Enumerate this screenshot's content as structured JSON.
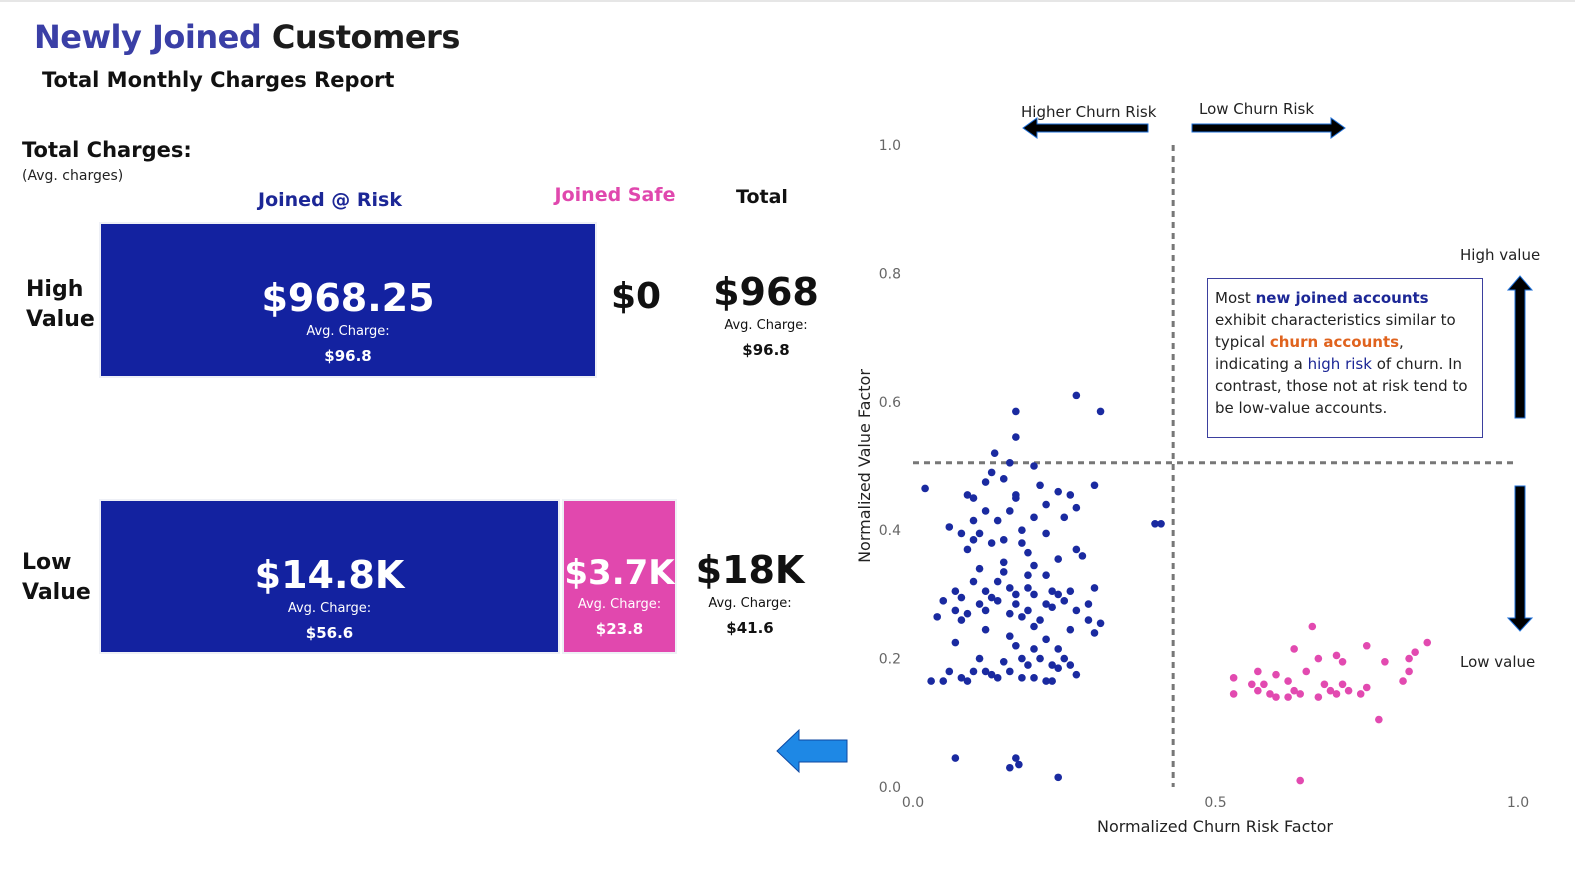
{
  "header": {
    "title_part1": "Newly Joined",
    "title_part2": "Customers",
    "subtitle": "Total Monthly Charges Report"
  },
  "summary": {
    "title": "Total Charges:",
    "subtitle": "(Avg. charges)",
    "columns": {
      "risk": "Joined @ Risk",
      "safe": "Joined Safe",
      "total": "Total"
    },
    "rows": {
      "high": {
        "label_line1": "High",
        "label_line2": "Value",
        "risk": {
          "value": "$968.25",
          "avg_label": "Avg. Charge:",
          "avg": "$96.8"
        },
        "safe": {
          "value": "$0"
        },
        "total": {
          "value": "$968",
          "avg_label": "Avg. Charge:",
          "avg": "$96.8"
        }
      },
      "low": {
        "label_line1": "Low",
        "label_line2": "Value",
        "risk": {
          "value": "$14.8K",
          "avg_label": "Avg. Charge:",
          "avg": "$56.6"
        },
        "safe": {
          "value": "$3.7K",
          "avg_label": "Avg. Charge:",
          "avg": "$23.8"
        },
        "total": {
          "value": "$18K",
          "avg_label": "Avg. Charge:",
          "avg": "$41.6"
        }
      }
    }
  },
  "colors": {
    "risk": "#1322a0",
    "safe": "#e148ae",
    "title_accent": "#3a3fa6",
    "churn_highlight": "#e0631e",
    "back_arrow": "#1e88e5"
  },
  "annotations": {
    "higher_churn": "Higher Churn Risk",
    "low_churn": "Low Churn Risk",
    "high_value": "High value",
    "low_value": "Low value",
    "note": {
      "p1": "Most ",
      "p2": "new joined accounts",
      "p3": " exhibit characteristics similar to typical ",
      "p4": "churn accounts",
      "p5": ", indicating a ",
      "p6": "high risk",
      "p7": " of churn. In contrast, those not at risk tend to be low-value accounts."
    }
  },
  "chart_data": {
    "type": "scatter",
    "xlabel": "Normalized Churn Risk Factor",
    "ylabel": "Normalized Value Factor",
    "xlim": [
      0,
      1
    ],
    "ylim": [
      0,
      1
    ],
    "xticks": [
      "0.0",
      "0.5",
      "1.0"
    ],
    "yticks": [
      "0.0",
      "0.2",
      "0.4",
      "0.6",
      "0.8",
      "1.0"
    ],
    "reference_lines": {
      "x": 0.43,
      "y": 0.505
    },
    "series": [
      {
        "color": "#1a2aa0",
        "points": [
          [
            0.17,
            0.585
          ],
          [
            0.27,
            0.61
          ],
          [
            0.31,
            0.585
          ],
          [
            0.17,
            0.545
          ],
          [
            0.135,
            0.52
          ],
          [
            0.16,
            0.505
          ],
          [
            0.2,
            0.5
          ],
          [
            0.13,
            0.49
          ],
          [
            0.12,
            0.475
          ],
          [
            0.15,
            0.48
          ],
          [
            0.02,
            0.465
          ],
          [
            0.09,
            0.455
          ],
          [
            0.17,
            0.455
          ],
          [
            0.24,
            0.46
          ],
          [
            0.26,
            0.455
          ],
          [
            0.3,
            0.47
          ],
          [
            0.21,
            0.47
          ],
          [
            0.1,
            0.45
          ],
          [
            0.17,
            0.45
          ],
          [
            0.22,
            0.44
          ],
          [
            0.27,
            0.435
          ],
          [
            0.12,
            0.43
          ],
          [
            0.16,
            0.43
          ],
          [
            0.2,
            0.42
          ],
          [
            0.25,
            0.42
          ],
          [
            0.1,
            0.415
          ],
          [
            0.14,
            0.415
          ],
          [
            0.06,
            0.405
          ],
          [
            0.08,
            0.395
          ],
          [
            0.11,
            0.395
          ],
          [
            0.18,
            0.4
          ],
          [
            0.22,
            0.395
          ],
          [
            0.4,
            0.41
          ],
          [
            0.41,
            0.41
          ],
          [
            0.1,
            0.385
          ],
          [
            0.13,
            0.38
          ],
          [
            0.15,
            0.385
          ],
          [
            0.18,
            0.38
          ],
          [
            0.09,
            0.37
          ],
          [
            0.19,
            0.365
          ],
          [
            0.27,
            0.37
          ],
          [
            0.24,
            0.355
          ],
          [
            0.28,
            0.36
          ],
          [
            0.15,
            0.35
          ],
          [
            0.2,
            0.345
          ],
          [
            0.11,
            0.34
          ],
          [
            0.15,
            0.335
          ],
          [
            0.19,
            0.33
          ],
          [
            0.22,
            0.33
          ],
          [
            0.1,
            0.32
          ],
          [
            0.14,
            0.32
          ],
          [
            0.07,
            0.305
          ],
          [
            0.12,
            0.305
          ],
          [
            0.16,
            0.31
          ],
          [
            0.19,
            0.31
          ],
          [
            0.23,
            0.305
          ],
          [
            0.08,
            0.295
          ],
          [
            0.05,
            0.29
          ],
          [
            0.13,
            0.295
          ],
          [
            0.17,
            0.3
          ],
          [
            0.2,
            0.3
          ],
          [
            0.24,
            0.3
          ],
          [
            0.26,
            0.305
          ],
          [
            0.3,
            0.31
          ],
          [
            0.11,
            0.285
          ],
          [
            0.14,
            0.29
          ],
          [
            0.17,
            0.285
          ],
          [
            0.22,
            0.285
          ],
          [
            0.25,
            0.29
          ],
          [
            0.29,
            0.285
          ],
          [
            0.07,
            0.275
          ],
          [
            0.09,
            0.27
          ],
          [
            0.12,
            0.275
          ],
          [
            0.16,
            0.27
          ],
          [
            0.19,
            0.275
          ],
          [
            0.23,
            0.28
          ],
          [
            0.27,
            0.275
          ],
          [
            0.04,
            0.265
          ],
          [
            0.08,
            0.26
          ],
          [
            0.18,
            0.265
          ],
          [
            0.21,
            0.26
          ],
          [
            0.29,
            0.26
          ],
          [
            0.31,
            0.255
          ],
          [
            0.2,
            0.25
          ],
          [
            0.26,
            0.245
          ],
          [
            0.12,
            0.245
          ],
          [
            0.3,
            0.24
          ],
          [
            0.16,
            0.235
          ],
          [
            0.22,
            0.23
          ],
          [
            0.07,
            0.225
          ],
          [
            0.17,
            0.22
          ],
          [
            0.2,
            0.215
          ],
          [
            0.24,
            0.215
          ],
          [
            0.18,
            0.2
          ],
          [
            0.21,
            0.2
          ],
          [
            0.25,
            0.2
          ],
          [
            0.11,
            0.2
          ],
          [
            0.15,
            0.195
          ],
          [
            0.19,
            0.19
          ],
          [
            0.23,
            0.19
          ],
          [
            0.26,
            0.19
          ],
          [
            0.24,
            0.185
          ],
          [
            0.12,
            0.18
          ],
          [
            0.16,
            0.18
          ],
          [
            0.1,
            0.18
          ],
          [
            0.06,
            0.18
          ],
          [
            0.13,
            0.175
          ],
          [
            0.27,
            0.175
          ],
          [
            0.14,
            0.17
          ],
          [
            0.18,
            0.17
          ],
          [
            0.2,
            0.17
          ],
          [
            0.08,
            0.17
          ],
          [
            0.09,
            0.165
          ],
          [
            0.03,
            0.165
          ],
          [
            0.05,
            0.165
          ],
          [
            0.22,
            0.165
          ],
          [
            0.23,
            0.165
          ],
          [
            0.07,
            0.045
          ],
          [
            0.17,
            0.045
          ],
          [
            0.175,
            0.035
          ],
          [
            0.16,
            0.03
          ],
          [
            0.24,
            0.015
          ]
        ]
      },
      {
        "color": "#e24ab0",
        "points": [
          [
            0.66,
            0.25
          ],
          [
            0.63,
            0.215
          ],
          [
            0.75,
            0.22
          ],
          [
            0.85,
            0.225
          ],
          [
            0.7,
            0.205
          ],
          [
            0.67,
            0.2
          ],
          [
            0.78,
            0.195
          ],
          [
            0.83,
            0.21
          ],
          [
            0.71,
            0.195
          ],
          [
            0.82,
            0.2
          ],
          [
            0.57,
            0.18
          ],
          [
            0.53,
            0.17
          ],
          [
            0.65,
            0.18
          ],
          [
            0.82,
            0.18
          ],
          [
            0.6,
            0.175
          ],
          [
            0.62,
            0.165
          ],
          [
            0.81,
            0.165
          ],
          [
            0.56,
            0.16
          ],
          [
            0.58,
            0.16
          ],
          [
            0.68,
            0.16
          ],
          [
            0.71,
            0.16
          ],
          [
            0.75,
            0.155
          ],
          [
            0.53,
            0.145
          ],
          [
            0.57,
            0.15
          ],
          [
            0.59,
            0.145
          ],
          [
            0.63,
            0.15
          ],
          [
            0.64,
            0.145
          ],
          [
            0.69,
            0.15
          ],
          [
            0.72,
            0.15
          ],
          [
            0.6,
            0.14
          ],
          [
            0.62,
            0.14
          ],
          [
            0.67,
            0.14
          ],
          [
            0.7,
            0.145
          ],
          [
            0.74,
            0.145
          ],
          [
            0.77,
            0.105
          ],
          [
            0.64,
            0.01
          ]
        ]
      }
    ]
  }
}
